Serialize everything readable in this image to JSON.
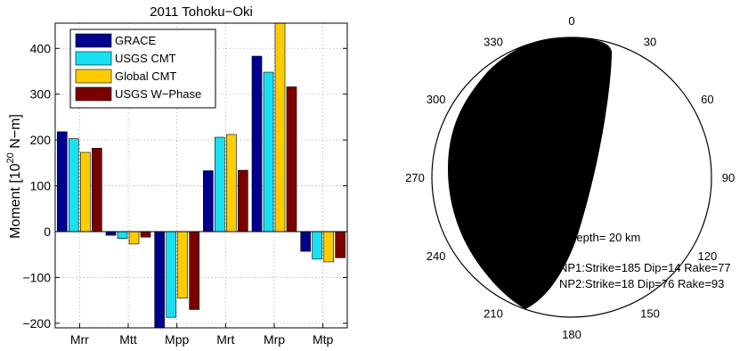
{
  "chart_data": [
    {
      "type": "bar",
      "title": "2011 Tohoku−Oki",
      "ylabel": "Moment [10",
      "ylabel_exp": "20",
      "ylabel_unit": " N−m]",
      "ylim": [
        -210,
        455
      ],
      "yticks": [
        -200,
        -100,
        0,
        100,
        200,
        300,
        400
      ],
      "ytick_labels": [
        "−200",
        "−100",
        "0",
        "100",
        "200",
        "300",
        "400"
      ],
      "grid": true,
      "legend_position": "top-left",
      "categories": [
        "Mrr",
        "Mtt",
        "Mpp",
        "Mrt",
        "Mrp",
        "Mtp"
      ],
      "series": [
        {
          "name": "GRACE",
          "color": "#00008f",
          "values": [
            218,
            -8,
            -215,
            133,
            383,
            -43
          ]
        },
        {
          "name": "USGS CMT",
          "color": "#18e0f0",
          "values": [
            203,
            -15,
            -187,
            206,
            348,
            -60
          ]
        },
        {
          "name": "Global CMT",
          "color": "#ffcc00",
          "values": [
            173,
            -27,
            -145,
            212,
            460,
            -66
          ]
        },
        {
          "name": "USGS W−Phase",
          "color": "#7a0000",
          "values": [
            182,
            -12,
            -170,
            134,
            316,
            -57
          ]
        }
      ]
    },
    {
      "type": "diagram",
      "azimuth_labels": [
        "0",
        "30",
        "60",
        "90",
        "120",
        "150",
        "180",
        "210",
        "240",
        "270",
        "300",
        "330"
      ],
      "depth_label": "Depth= 20 km",
      "np1_label": "NP1:Strike=185 Dip=14 Rake=77",
      "np2_label": "NP2:Strike=18 Dip=76 Rake=93"
    }
  ]
}
